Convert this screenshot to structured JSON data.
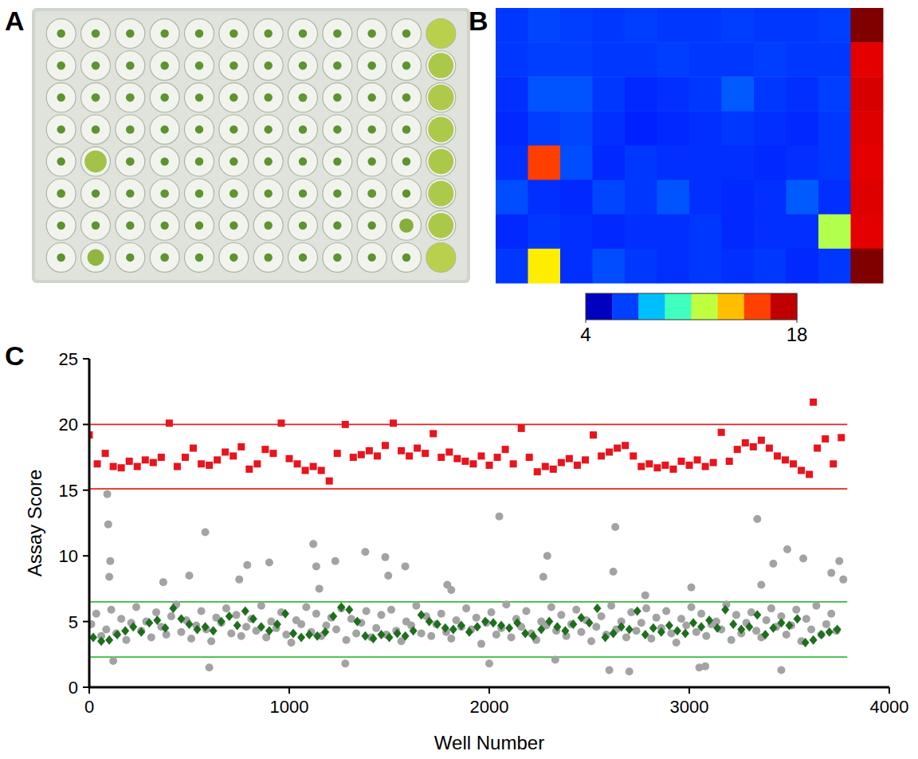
{
  "plate_photo": {
    "label": "A"
  },
  "chart_data": [
    {
      "type": "heatmap",
      "label": "B",
      "cells": [
        [
          6.5,
          6.7,
          6.6,
          6.5,
          6.6,
          6.5,
          6.5,
          6.6,
          6.5,
          6.5,
          6.6,
          18.0
        ],
        [
          6.5,
          6.6,
          6.6,
          6.5,
          6.5,
          6.6,
          6.5,
          6.5,
          6.6,
          6.5,
          6.5,
          16.6
        ],
        [
          6.4,
          6.9,
          6.9,
          6.5,
          6.3,
          6.4,
          6.5,
          7.0,
          6.5,
          6.4,
          6.6,
          16.8
        ],
        [
          6.3,
          6.6,
          6.7,
          6.4,
          6.2,
          6.3,
          6.4,
          6.5,
          6.4,
          6.3,
          6.5,
          16.7
        ],
        [
          6.4,
          15.4,
          6.8,
          6.3,
          6.5,
          6.4,
          6.4,
          6.4,
          6.3,
          6.4,
          6.5,
          16.6
        ],
        [
          6.8,
          6.4,
          6.3,
          6.7,
          6.5,
          6.9,
          6.4,
          6.3,
          6.4,
          7.0,
          6.4,
          16.7
        ],
        [
          6.3,
          6.5,
          6.4,
          6.3,
          6.4,
          6.4,
          6.5,
          6.3,
          6.4,
          6.4,
          11.7,
          16.6
        ],
        [
          6.5,
          13.0,
          6.4,
          6.8,
          6.5,
          6.4,
          6.5,
          6.4,
          6.5,
          6.3,
          6.5,
          18.0
        ]
      ],
      "colorbar": {
        "range": [
          4,
          18
        ],
        "ticks": [
          4,
          18
        ]
      }
    },
    {
      "type": "scatter",
      "label": "C",
      "x_label": "Well Number",
      "y_label": "Assay Score",
      "xlim": [
        0,
        4000
      ],
      "ylim": [
        0,
        25
      ],
      "xticks": [
        0,
        1000,
        2000,
        3000,
        4000
      ],
      "yticks": [
        0,
        5,
        10,
        15,
        20,
        25
      ],
      "reference_lines": [
        {
          "value": 20,
          "color": "#e02424"
        },
        {
          "value": 15.1,
          "color": "#e02424"
        },
        {
          "value": 6.5,
          "color": "#3cb83c"
        },
        {
          "value": 2.3,
          "color": "#3cb83c"
        }
      ],
      "series": [
        {
          "color": "#a3a3a3",
          "marker": "circle",
          "x": [
            10,
            35,
            60,
            85,
            110,
            135,
            160,
            185,
            210,
            235,
            260,
            285,
            310,
            335,
            360,
            385,
            410,
            435,
            460,
            485,
            510,
            535,
            560,
            585,
            610,
            635,
            660,
            685,
            710,
            735,
            760,
            785,
            810,
            835,
            860,
            885,
            910,
            935,
            960,
            985,
            1010,
            1035,
            1060,
            1085,
            1110,
            1135,
            1160,
            1185,
            1210,
            1235,
            1260,
            1285,
            1310,
            1335,
            1360,
            1385,
            1410,
            1435,
            1460,
            1485,
            1510,
            1535,
            1560,
            1585,
            1610,
            1635,
            1660,
            1685,
            1710,
            1735,
            1760,
            1785,
            1810,
            1835,
            1860,
            1885,
            1910,
            1935,
            1960,
            1985,
            2010,
            2035,
            2060,
            2085,
            2110,
            2135,
            2160,
            2185,
            2210,
            2235,
            2260,
            2285,
            2310,
            2335,
            2360,
            2385,
            2410,
            2435,
            2460,
            2485,
            2510,
            2535,
            2560,
            2585,
            2610,
            2635,
            2660,
            2685,
            2710,
            2735,
            2760,
            2785,
            2810,
            2835,
            2860,
            2885,
            2910,
            2935,
            2960,
            2985,
            3010,
            3035,
            3060,
            3085,
            3110,
            3135,
            3160,
            3185,
            3210,
            3235,
            3260,
            3285,
            3310,
            3335,
            3360,
            3385,
            3410,
            3435,
            3460,
            3485,
            3510,
            3535,
            3560,
            3585,
            3610,
            3635,
            3660,
            3685,
            3710,
            3735,
            90,
            95,
            105,
            100,
            370,
            500,
            580,
            600,
            750,
            790,
            900,
            1120,
            1135,
            1150,
            1230,
            1280,
            1380,
            1480,
            1495,
            1580,
            1790,
            2050,
            2000,
            2270,
            2290,
            2330,
            2630,
            2620,
            2600,
            2700,
            2780,
            3010,
            3050,
            3080,
            3340,
            3360,
            3420,
            3460,
            3490,
            3570,
            3710,
            3750,
            3770,
            120,
            1810
          ],
          "values": [
            4.8,
            5.6,
            3.9,
            4.4,
            5.9,
            4.1,
            5.2,
            3.6,
            4.9,
            6.1,
            4.3,
            5.0,
            3.8,
            5.7,
            4.6,
            4.0,
            5.4,
            6.3,
            4.2,
            5.1,
            3.7,
            4.7,
            5.8,
            4.4,
            3.5,
            5.3,
            4.9,
            6.0,
            4.1,
            5.5,
            3.9,
            4.6,
            5.2,
            4.3,
            6.2,
            3.8,
            5.0,
            4.5,
            5.7,
            4.0,
            3.4,
            5.1,
            4.8,
            6.1,
            4.2,
            5.6,
            3.9,
            4.7,
            5.3,
            4.4,
            6.0,
            3.6,
            5.2,
            4.1,
            4.9,
            5.8,
            3.8,
            4.5,
            5.5,
            4.0,
            5.9,
            4.3,
            3.5,
            5.0,
            4.7,
            6.2,
            4.1,
            5.4,
            3.9,
            4.8,
            5.6,
            4.2,
            3.7,
            5.1,
            4.6,
            6.0,
            4.4,
            5.3,
            3.3,
            4.9,
            5.7,
            4.0,
            4.5,
            6.3,
            3.8,
            5.2,
            4.6,
            5.8,
            4.1,
            3.6,
            5.0,
            4.7,
            6.1,
            4.3,
            5.5,
            3.9,
            4.8,
            5.9,
            4.2,
            5.1,
            3.5,
            4.6,
            5.4,
            4.0,
            6.2,
            4.4,
            5.0,
            3.8,
            5.7,
            4.3,
            4.9,
            6.0,
            3.7,
            5.3,
            4.5,
            5.8,
            4.1,
            3.4,
            5.2,
            4.7,
            6.1,
            4.2,
            5.6,
            3.9,
            4.8,
            5.0,
            4.4,
            6.3,
            3.6,
            5.5,
            4.1,
            4.9,
            5.7,
            4.3,
            3.8,
            5.1,
            6.0,
            4.6,
            5.4,
            4.0,
            4.7,
            5.9,
            3.5,
            5.2,
            4.4,
            6.2,
            4.0,
            4.8,
            5.6,
            4.3,
            14.7,
            12.4,
            9.6,
            8.4,
            8.0,
            8.5,
            11.8,
            1.5,
            8.2,
            9.3,
            9.5,
            10.9,
            9.2,
            7.5,
            9.6,
            1.8,
            10.3,
            9.9,
            8.5,
            9.2,
            7.8,
            13.0,
            1.8,
            8.4,
            10.0,
            2.1,
            12.2,
            8.8,
            1.3,
            1.2,
            7.0,
            7.6,
            1.5,
            1.6,
            12.8,
            7.8,
            9.4,
            1.3,
            10.5,
            9.8,
            8.7,
            9.6,
            8.2,
            2.0,
            7.4
          ]
        },
        {
          "color": "#1e6e1e",
          "marker": "diamond",
          "x": [
            20,
            60,
            100,
            140,
            180,
            220,
            260,
            300,
            340,
            380,
            420,
            460,
            500,
            540,
            580,
            620,
            660,
            700,
            740,
            780,
            820,
            860,
            900,
            940,
            980,
            1020,
            1060,
            1100,
            1140,
            1180,
            1220,
            1260,
            1300,
            1340,
            1380,
            1420,
            1460,
            1500,
            1540,
            1580,
            1620,
            1660,
            1700,
            1740,
            1780,
            1820,
            1860,
            1900,
            1940,
            1980,
            2020,
            2060,
            2100,
            2140,
            2180,
            2220,
            2260,
            2300,
            2340,
            2380,
            2420,
            2460,
            2500,
            2540,
            2580,
            2620,
            2660,
            2700,
            2740,
            2780,
            2820,
            2860,
            2900,
            2940,
            2980,
            3020,
            3060,
            3100,
            3140,
            3180,
            3220,
            3260,
            3300,
            3340,
            3380,
            3420,
            3460,
            3500,
            3540,
            3580,
            3620,
            3660,
            3700,
            3740
          ],
          "values": [
            3.8,
            3.5,
            3.6,
            4.0,
            4.3,
            4.6,
            4.2,
            4.9,
            5.1,
            4.5,
            6.0,
            5.2,
            4.8,
            4.4,
            4.6,
            4.3,
            5.0,
            5.4,
            4.7,
            5.8,
            5.2,
            4.6,
            4.3,
            4.8,
            5.6,
            4.1,
            3.8,
            4.0,
            3.9,
            4.2,
            5.4,
            6.1,
            5.9,
            5.0,
            3.9,
            3.7,
            4.0,
            3.8,
            4.1,
            3.9,
            4.3,
            5.5,
            5.0,
            4.8,
            4.5,
            4.4,
            4.7,
            4.2,
            4.6,
            5.0,
            4.9,
            4.7,
            4.5,
            4.9,
            4.1,
            3.9,
            4.4,
            5.0,
            4.6,
            4.3,
            4.8,
            5.3,
            4.9,
            6.0,
            3.8,
            4.1,
            4.6,
            4.4,
            5.8,
            4.0,
            4.5,
            4.2,
            4.7,
            4.3,
            4.1,
            4.9,
            4.6,
            5.1,
            4.5,
            5.9,
            4.8,
            4.4,
            4.6,
            5.5,
            4.0,
            4.5,
            4.9,
            4.7,
            5.2,
            3.4,
            3.6,
            4.0,
            4.2,
            4.4
          ]
        },
        {
          "color": "#e8141e",
          "marker": "square",
          "x": [
            0,
            40,
            80,
            120,
            160,
            200,
            240,
            280,
            320,
            360,
            400,
            440,
            480,
            520,
            560,
            600,
            640,
            680,
            720,
            760,
            800,
            840,
            880,
            920,
            960,
            1000,
            1040,
            1080,
            1120,
            1160,
            1200,
            1240,
            1280,
            1320,
            1360,
            1400,
            1440,
            1480,
            1520,
            1560,
            1600,
            1640,
            1680,
            1720,
            1760,
            1800,
            1840,
            1880,
            1920,
            1960,
            2000,
            2040,
            2080,
            2120,
            2160,
            2200,
            2240,
            2280,
            2320,
            2360,
            2400,
            2440,
            2480,
            2520,
            2560,
            2600,
            2640,
            2680,
            2720,
            2760,
            2800,
            2840,
            2880,
            2920,
            2960,
            3000,
            3040,
            3080,
            3120,
            3160,
            3200,
            3240,
            3280,
            3320,
            3360,
            3400,
            3440,
            3480,
            3520,
            3560,
            3600,
            3620,
            3640,
            3680,
            3720,
            3760
          ],
          "values": [
            19.2,
            17.0,
            17.8,
            16.8,
            16.7,
            17.2,
            16.8,
            17.3,
            17.1,
            17.5,
            20.1,
            16.8,
            17.5,
            18.2,
            17.0,
            16.9,
            17.3,
            17.9,
            17.6,
            18.3,
            16.6,
            17.0,
            18.1,
            17.8,
            20.1,
            17.4,
            17.0,
            16.5,
            16.8,
            16.5,
            15.7,
            17.8,
            20.0,
            17.5,
            17.7,
            18.0,
            17.6,
            18.4,
            20.1,
            18.0,
            17.6,
            18.2,
            17.8,
            19.3,
            17.5,
            17.9,
            17.4,
            17.2,
            17.0,
            17.6,
            16.9,
            17.5,
            18.1,
            17.0,
            19.7,
            17.5,
            16.4,
            16.8,
            16.6,
            17.1,
            17.4,
            16.9,
            17.3,
            19.2,
            17.6,
            17.9,
            18.2,
            18.4,
            17.6,
            16.8,
            17.0,
            16.7,
            16.9,
            16.6,
            17.2,
            16.9,
            17.3,
            16.8,
            17.1,
            19.4,
            17.2,
            18.1,
            18.6,
            18.3,
            18.8,
            18.2,
            17.6,
            17.3,
            17.0,
            16.5,
            16.2,
            21.7,
            18.2,
            18.9,
            17.0,
            19.0
          ]
        }
      ]
    }
  ]
}
